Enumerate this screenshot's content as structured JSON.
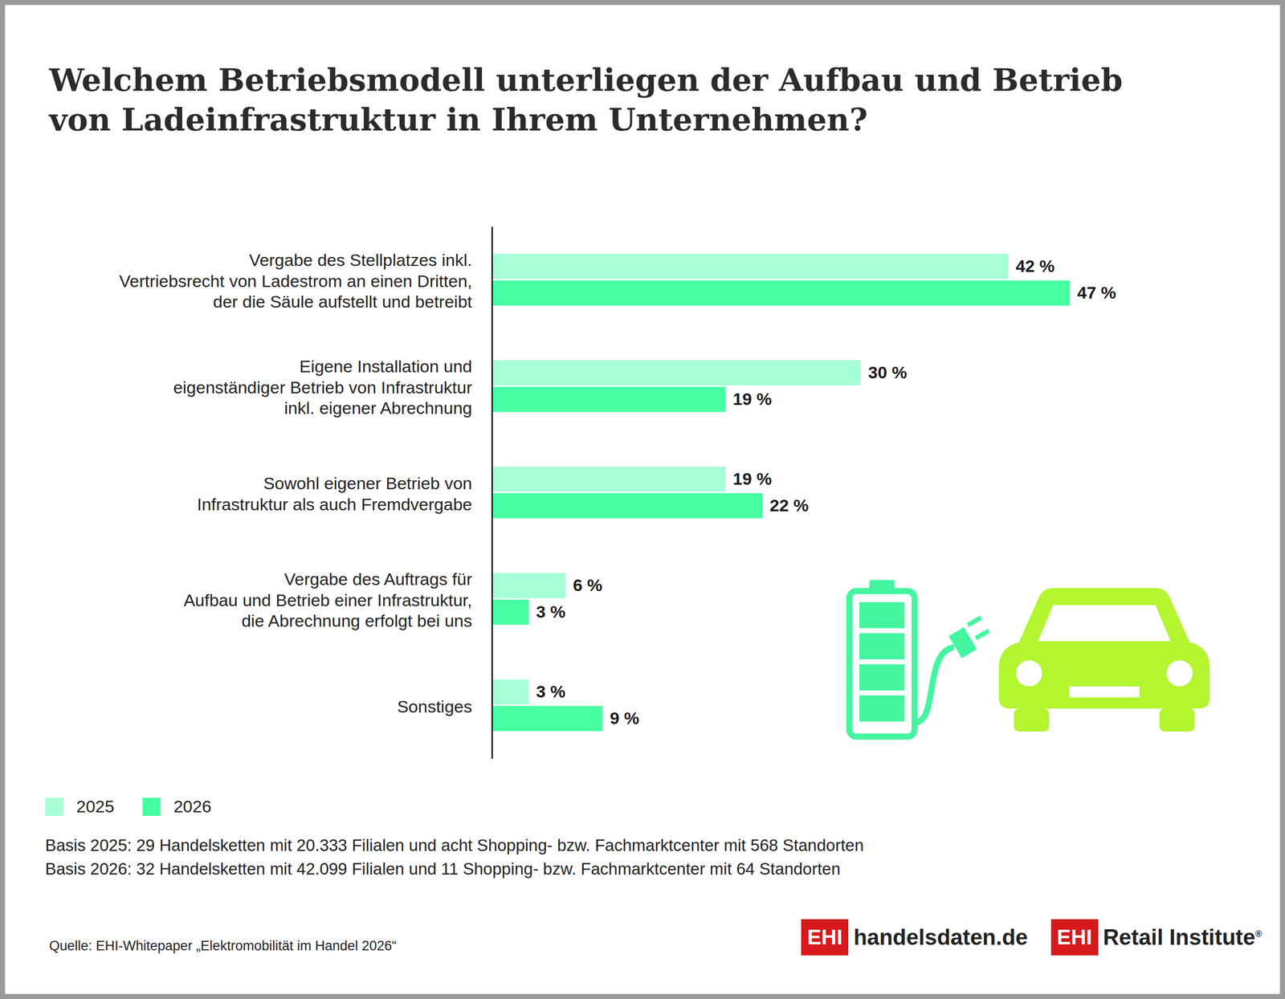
{
  "chart_data": {
    "type": "bar",
    "title": "Welchem Betriebsmodell unterliegen der Aufbau und Betrieb\nvon Ladeinfrastruktur in Ihrem Unternehmen?",
    "orientation": "horizontal",
    "categories": [
      "Vergabe des Stellplatzes inkl.\nVertriebsrecht von Ladestrom an einen Dritten,\nder die Säule aufstellt und betreibt",
      "Eigene Installation und\neigenständiger Betrieb von Infrastruktur\ninkl. eigener Abrechnung",
      "Sowohl eigener Betrieb von\nInfrastruktur als auch Fremdvergabe",
      "Vergabe des Auftrags für\nAufbau und Betrieb einer Infrastruktur,\ndie Abrechnung erfolgt bei uns",
      "Sonstiges"
    ],
    "series": [
      {
        "name": "2025",
        "color": "#a6ffd5",
        "values": [
          42,
          30,
          19,
          6,
          3
        ],
        "value_labels": [
          "42 %",
          "30 %",
          "19 %",
          "6 %",
          "3 %"
        ]
      },
      {
        "name": "2026",
        "color": "#46ffa3",
        "values": [
          47,
          19,
          22,
          3,
          9
        ],
        "value_labels": [
          "47 %",
          "19 %",
          "22 %",
          "3 %",
          "9 %"
        ]
      }
    ],
    "xlim": [
      0,
      60
    ],
    "data_labels": true,
    "tick_labels": "y",
    "legend": "bottom-left",
    "notes": [
      "Basis 2025: 29 Handelsketten mit 20.333 Filialen und acht Shopping- bzw. Fachmarktcenter mit 568 Standorten",
      "Basis 2026: 32 Handelsketten mit 42.099 Filialen und 11 Shopping- bzw. Fachmarktcenter mit 64 Standorten"
    ],
    "source": "Quelle: EHI-Whitepaper „Elektromobilität im Handel 2026“"
  },
  "logos": [
    {
      "mark": "EHI",
      "text": "handelsdaten.de"
    },
    {
      "mark": "EHI",
      "text": "Retail Institute",
      "sup": "®"
    }
  ]
}
